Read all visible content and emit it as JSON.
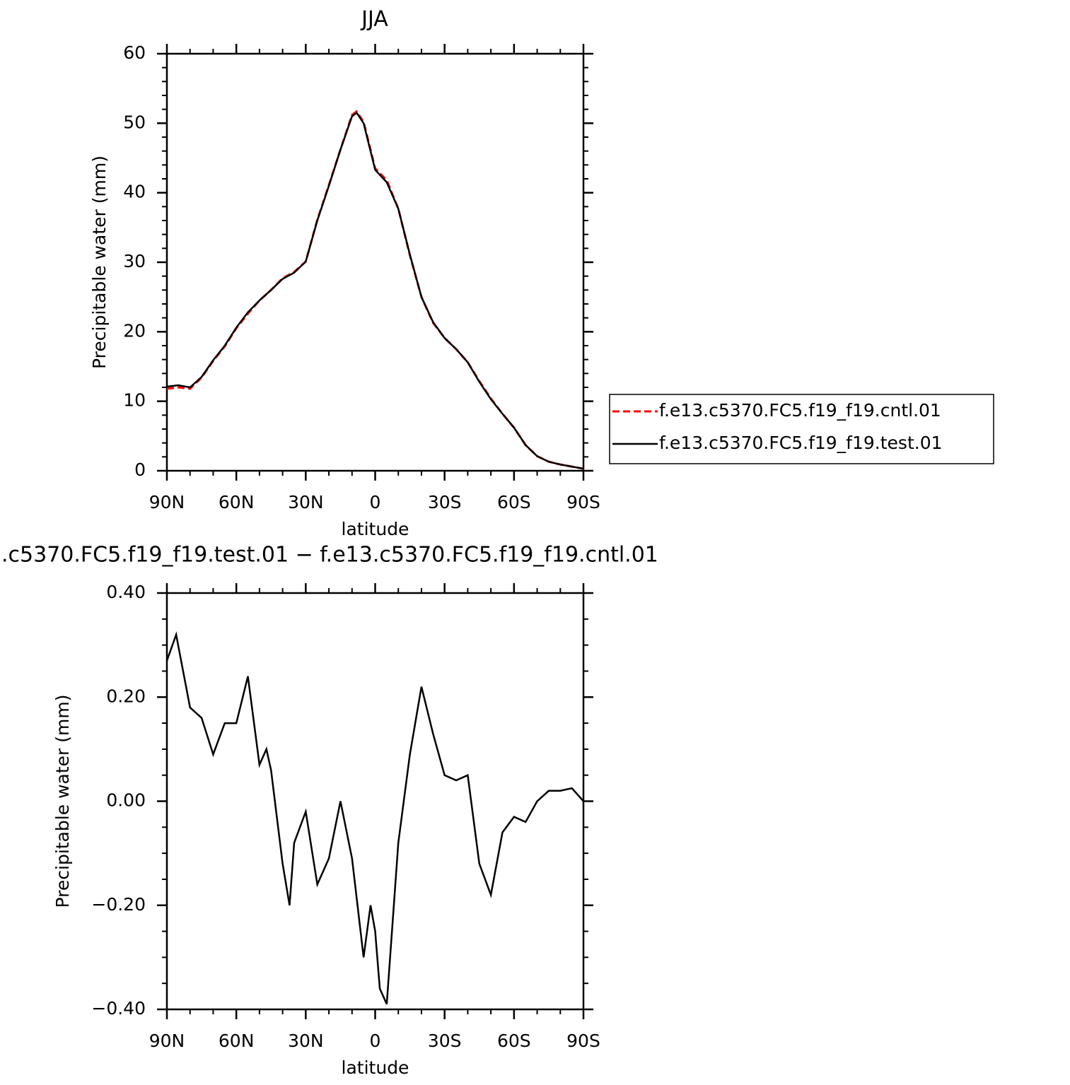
{
  "chart_data": [
    {
      "type": "line",
      "title": "JJA",
      "xlabel": "latitude",
      "ylabel": "Precipitable water (mm)",
      "x": [
        90,
        85,
        80,
        75,
        70,
        65,
        60,
        55,
        50,
        45,
        40,
        35,
        30,
        25,
        20,
        15,
        10,
        8,
        5,
        0,
        -5,
        -10,
        -15,
        -20,
        -25,
        -30,
        -35,
        -40,
        -45,
        -50,
        -55,
        -60,
        -65,
        -70,
        -75,
        -80,
        -85,
        -90
      ],
      "series": [
        {
          "name": "f.e13.c5370.FC5.f19_f19.cntl.01",
          "color": "#ff0000",
          "dash": true,
          "values": [
            11.8,
            12.0,
            11.8,
            13.4,
            15.8,
            17.9,
            20.5,
            22.6,
            24.5,
            26.0,
            27.7,
            28.6,
            30.1,
            36.1,
            41.1,
            46.2,
            51.2,
            51.7,
            50.2,
            43.5,
            41.8,
            37.7,
            31.0,
            25.0,
            21.3,
            19.1,
            17.5,
            15.6,
            12.9,
            10.4,
            8.2,
            6.2,
            3.7,
            2.1,
            1.3,
            0.9,
            0.6,
            0.3
          ]
        },
        {
          "name": "f.e13.c5370.FC5.f19_f19.test.01",
          "color": "#000000",
          "dash": false,
          "values": [
            12.1,
            12.3,
            12.0,
            13.5,
            15.9,
            18.0,
            20.6,
            22.8,
            24.5,
            26.0,
            27.6,
            28.5,
            30.1,
            36.0,
            41.0,
            46.2,
            51.0,
            51.5,
            50.0,
            43.3,
            41.5,
            37.7,
            31.1,
            25.0,
            21.4,
            19.1,
            17.5,
            15.6,
            12.8,
            10.3,
            8.2,
            6.2,
            3.7,
            2.1,
            1.3,
            0.9,
            0.6,
            0.3
          ]
        }
      ],
      "xlim": [
        90,
        -90
      ],
      "xticks": [
        {
          "value": 90,
          "label": "90N"
        },
        {
          "value": 60,
          "label": "60N"
        },
        {
          "value": 30,
          "label": "30N"
        },
        0,
        {
          "value": -30,
          "label": "30S"
        },
        {
          "value": -60,
          "label": "60S"
        },
        {
          "value": -90,
          "label": "90S"
        }
      ],
      "ylim": [
        0,
        60
      ],
      "yticks": [
        0,
        10,
        20,
        30,
        40,
        50,
        60
      ],
      "legend": "right"
    },
    {
      "type": "line",
      "title": ".c5370.FC5.f19_f19.test.01 − f.e13.c5370.FC5.f19_f19.cntl.01",
      "xlabel": "latitude",
      "ylabel": "Precipitable water (mm)",
      "x": [
        90,
        86,
        80,
        75,
        70,
        65,
        60,
        55,
        50,
        47,
        45,
        40,
        37,
        35,
        30,
        25,
        20,
        15,
        10,
        5,
        2,
        0,
        -2,
        -5,
        -10,
        -15,
        -20,
        -25,
        -30,
        -35,
        -40,
        -45,
        -50,
        -55,
        -60,
        -65,
        -70,
        -75,
        -80,
        -85,
        -90
      ],
      "series": [
        {
          "color": "#000000",
          "dash": false,
          "values": [
            0.27,
            0.32,
            0.18,
            0.16,
            0.09,
            0.15,
            0.15,
            0.24,
            0.07,
            0.1,
            0.06,
            -0.12,
            -0.2,
            -0.08,
            -0.02,
            -0.16,
            -0.11,
            0.0,
            -0.11,
            -0.3,
            -0.2,
            -0.25,
            -0.36,
            -0.39,
            -0.08,
            0.09,
            0.22,
            0.13,
            0.05,
            0.04,
            0.05,
            -0.12,
            -0.18,
            -0.06,
            -0.03,
            -0.04,
            0.0,
            0.02,
            0.02,
            0.025,
            0.0
          ]
        }
      ],
      "xlim": [
        90,
        -90
      ],
      "xticks": [
        {
          "value": 90,
          "label": "90N"
        },
        {
          "value": 60,
          "label": "60N"
        },
        {
          "value": 30,
          "label": "30N"
        },
        0,
        {
          "value": -30,
          "label": "30S"
        },
        {
          "value": -60,
          "label": "60S"
        },
        {
          "value": -90,
          "label": "90S"
        }
      ],
      "ylim": [
        -0.4,
        0.4
      ],
      "yticks": [
        {
          "value": -0.4,
          "label": "−0.40"
        },
        {
          "value": -0.2,
          "label": "−0.20"
        },
        {
          "value": 0,
          "label": "0.00"
        },
        {
          "value": 0.2,
          "label": "0.20"
        },
        {
          "value": 0.4,
          "label": "0.40"
        }
      ]
    }
  ]
}
